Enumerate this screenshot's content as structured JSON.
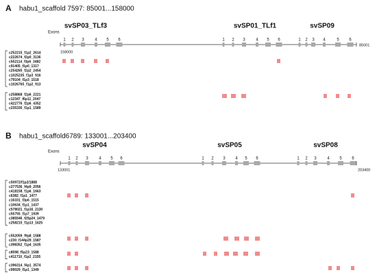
{
  "panels": [
    {
      "label": "A",
      "title": "habu1_scaffold 7597: 85001...158000",
      "exon_label": "Exons",
      "start": 158000,
      "end": 85001,
      "genes": [
        {
          "name": "svSP03_TLf3",
          "exons": [
            1,
            2,
            3,
            4,
            5,
            6
          ]
        },
        {
          "name": "svSP01_TLf1",
          "exons": [
            1,
            2,
            3,
            4,
            5,
            6
          ]
        },
        {
          "name": "svSP09",
          "exons": [
            1,
            2,
            3,
            4,
            5,
            6
          ]
        }
      ],
      "groups": [
        [
          "c252215_f1p2_2614",
          "c222674_f2p0_3136",
          "c552114_f3p6_3482",
          "c91405_f1p0_1317",
          "c254265_f2p2_2454",
          "c1025235_f1p3_916",
          "c79104_f1p3_1518",
          "c1026765_f1p2_913"
        ],
        [
          "c258868_f2p6_2221",
          "c12347_f6p11_2047",
          "c422776_f2p6_4352",
          "c235330_f1p1_1589"
        ]
      ]
    },
    {
      "label": "B",
      "title": "habu1_scaffold6789: 133001...203400",
      "exon_label": "Exons",
      "start": 133001,
      "end": 203400,
      "genes": [
        {
          "name": "svSP04",
          "exons": [
            1,
            2,
            3,
            4,
            5,
            6
          ]
        },
        {
          "name": "svSP05",
          "exons": [
            1,
            2,
            3,
            4,
            5,
            6
          ]
        },
        {
          "name": "svSP08",
          "exons": [
            1,
            2,
            3,
            4,
            5,
            6
          ]
        }
      ],
      "groups": [
        [
          "c50972/f1p2/1888",
          "c277536_f4p9_2056",
          "c418158_f1p6_1663",
          "c6382_f1p1_1477",
          "c16331_f3p6_1515",
          "c10634_f1p1_1437",
          "c578021_f1p16_2130",
          "c55755_f1p7_1939",
          "c385546_f25p24_1479",
          "c258215_f1p13_1625"
        ],
        [
          "c552059_f9p8_1588",
          "c230_f144p29_1587",
          "c398352_f1p4_1635"
        ],
        [
          "c8598_f5p23_1588",
          "c411710_f1p2_2155"
        ],
        [
          "c396314_f4p1_3574",
          "c99029_f1p1_1349"
        ]
      ]
    }
  ]
}
